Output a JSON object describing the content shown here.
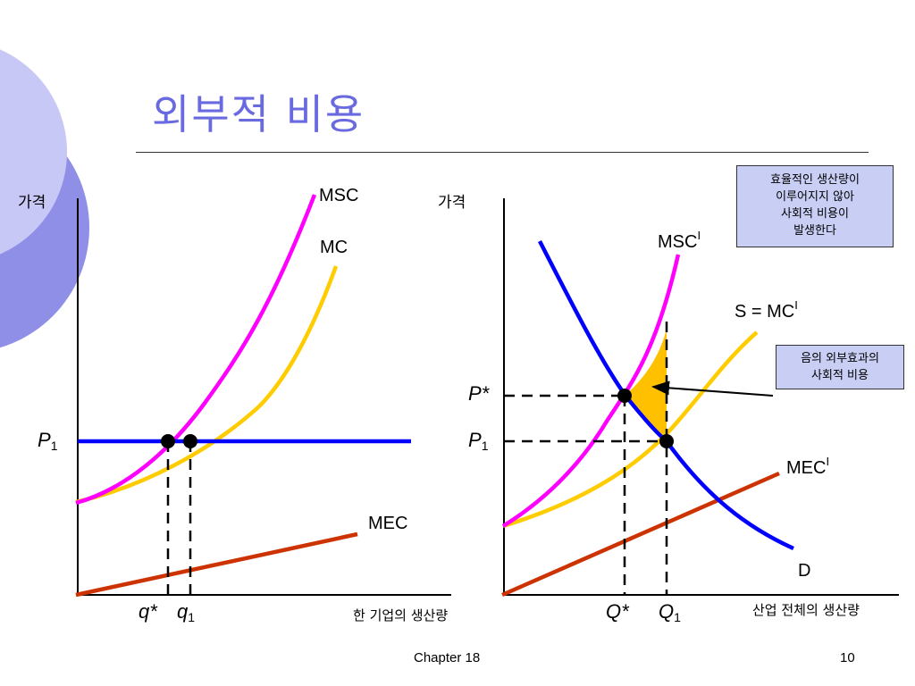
{
  "slide": {
    "title": "외부적 비용",
    "footer_chapter": "Chapter 18",
    "page_number": "10",
    "accent_color": "#6a6ae0"
  },
  "left_graph": {
    "y_axis_label": "가격",
    "x_axis_label": "한 기업의 생산량",
    "curves": {
      "msc": "MSC",
      "mc": "MC",
      "mec": "MEC"
    },
    "price_label": {
      "main": "P",
      "sub": "1"
    },
    "quantity_labels": [
      {
        "main": "q*",
        "sub": ""
      },
      {
        "main": "q",
        "sub": "1"
      }
    ]
  },
  "right_graph": {
    "y_axis_label": "가격",
    "x_axis_label": "산업 전체의 생산량",
    "curves": {
      "msc": {
        "main": "MSC",
        "sup": "I"
      },
      "supply": {
        "main": "S = MC",
        "sup": "I"
      },
      "mec": {
        "main": "MEC",
        "sup": "I"
      },
      "demand": "D"
    },
    "price_labels": [
      {
        "main": "P*",
        "sub": ""
      },
      {
        "main": "P",
        "sub": "1"
      }
    ],
    "quantity_labels": [
      {
        "main": "Q*",
        "sub": ""
      },
      {
        "main": "Q",
        "sub": "1"
      }
    ]
  },
  "notes": {
    "inefficiency": [
      "효율적인 생산량이",
      "이루어지지 않아",
      "사회적 비용이",
      "발생한다"
    ],
    "social_cost": [
      "음의 외부효과의",
      "사회적 비용"
    ]
  },
  "colors": {
    "msc": "#ff00ff",
    "mc": "#ffcc00",
    "mec": "#cc3300",
    "price_line": "#0000ff",
    "demand": "#0000ff",
    "deadweight_fill": "#ffc000",
    "note_fill": "#c9cef5"
  }
}
